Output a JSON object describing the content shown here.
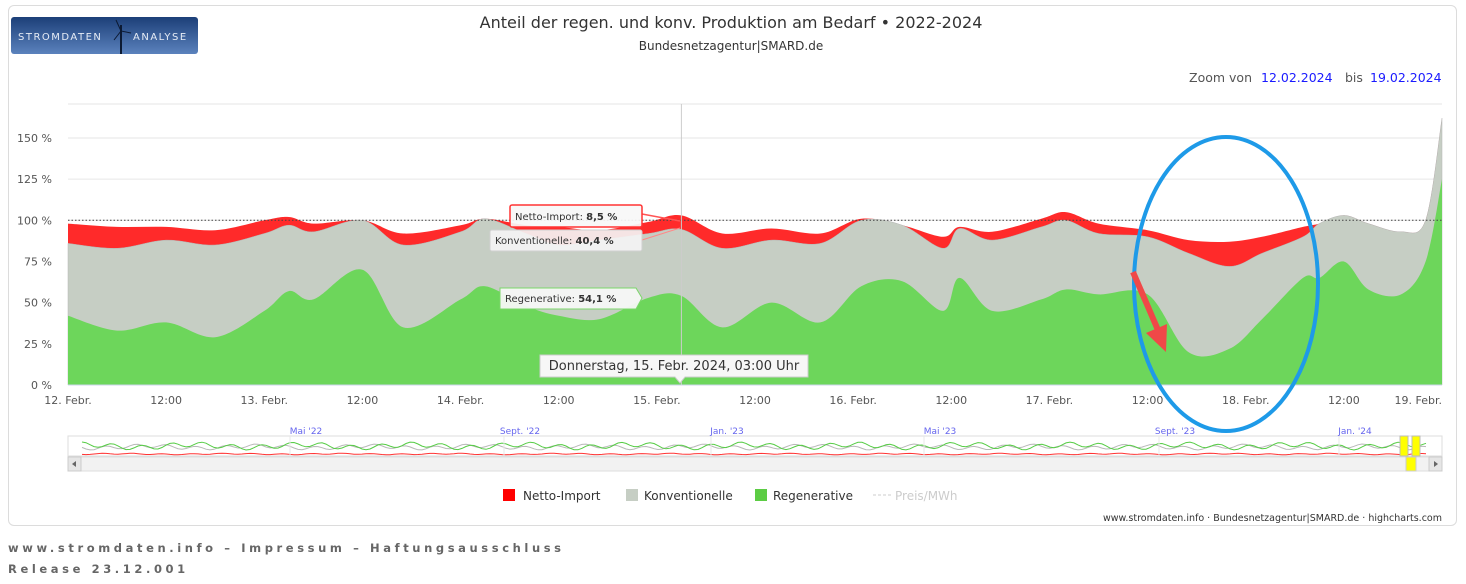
{
  "logo": {
    "text_left": "STROMDATEN",
    "text_right": "ANALYSE"
  },
  "header": {
    "title": "Anteil der regen. und konv. Produktion am Bedarf  •  2022-2024",
    "subtitle": "Bundesnetzagentur|SMARD.de"
  },
  "zoom": {
    "label_from": "Zoom von",
    "from": "12.02.2024",
    "label_to": "bis",
    "to": "19.02.2024"
  },
  "colors": {
    "import": "#ff2a2a",
    "konventionelle": "#c6cec4",
    "regenerative": "#6dd65b",
    "date_link": "#1a1aff"
  },
  "chart_data": {
    "type": "area",
    "stacked": true,
    "x_unit": "hours since 12. Febr. 2024 00:00",
    "x": [
      0,
      6,
      12,
      18,
      24,
      27,
      30,
      36,
      41,
      48,
      51,
      56,
      60,
      65,
      71,
      75,
      80,
      86,
      92,
      97,
      102,
      107,
      109,
      113,
      119,
      122,
      126,
      132,
      137,
      142,
      146,
      151,
      153,
      156,
      159,
      163,
      166,
      168
    ],
    "series": [
      {
        "name": "Regenerative",
        "color": "#6dd65b",
        "values": [
          42,
          33,
          38,
          29,
          45,
          57,
          52,
          70,
          35,
          52,
          60,
          48,
          42,
          40,
          53,
          54.1,
          35,
          50,
          38,
          60,
          63,
          45,
          65,
          45,
          52,
          58,
          55,
          55,
          20,
          22,
          40,
          65,
          65,
          75,
          58,
          55,
          75,
          125
        ]
      },
      {
        "name": "Konventionelle",
        "color": "#c6cec4",
        "values": [
          44,
          50,
          50,
          56,
          47,
          40,
          41,
          30,
          50,
          41,
          41,
          44,
          43,
          48,
          39,
          40.4,
          48,
          38,
          48,
          40,
          34,
          38,
          30,
          43,
          44,
          42,
          37,
          35,
          60,
          50,
          40,
          25,
          33,
          28,
          40,
          38,
          25,
          37
        ]
      },
      {
        "name": "Netto-Import",
        "color": "#ff2a2a",
        "values": [
          12,
          13,
          8,
          9,
          8,
          5,
          5,
          0,
          7,
          4,
          0,
          5,
          11,
          6,
          7,
          8.5,
          9,
          7,
          6,
          1,
          0,
          7,
          1,
          5,
          5,
          5,
          6,
          4,
          8,
          15,
          10,
          6,
          0,
          0,
          0,
          0,
          0,
          0
        ]
      }
    ],
    "ylim": [
      0,
      170
    ],
    "yticks": [
      {
        "v": 0,
        "label": "0 %"
      },
      {
        "v": 25,
        "label": "25 %"
      },
      {
        "v": 50,
        "label": "50 %"
      },
      {
        "v": 75,
        "label": "75 %"
      },
      {
        "v": 100,
        "label": "100 %"
      },
      {
        "v": 125,
        "label": "125 %"
      },
      {
        "v": 150,
        "label": "150 %"
      }
    ],
    "reference_line": 100,
    "xticks": [
      {
        "h": 0,
        "label": "12. Febr."
      },
      {
        "h": 12,
        "label": "12:00"
      },
      {
        "h": 24,
        "label": "13. Febr."
      },
      {
        "h": 36,
        "label": "12:00"
      },
      {
        "h": 48,
        "label": "14. Febr."
      },
      {
        "h": 60,
        "label": "12:00"
      },
      {
        "h": 72,
        "label": "15. Febr."
      },
      {
        "h": 84,
        "label": "12:00"
      },
      {
        "h": 96,
        "label": "16. Febr."
      },
      {
        "h": 108,
        "label": "12:00"
      },
      {
        "h": 120,
        "label": "17. Febr."
      },
      {
        "h": 132,
        "label": "12:00"
      },
      {
        "h": 144,
        "label": "18. Febr."
      },
      {
        "h": 156,
        "label": "12:00"
      },
      {
        "h": 168,
        "label": "19. Febr."
      }
    ],
    "grid": true,
    "tooltip": {
      "x_hours": 75,
      "header": "Donnerstag, 15. Febr. 2024, 03:00 Uhr",
      "import_label": "Netto-Import: ",
      "import_value": "8,5 %",
      "konv_label": "Konventionelle: ",
      "konv_value": "40,4 %",
      "regen_label": "Regenerative: ",
      "regen_value": "54,1 %"
    },
    "legend": {
      "placement": "bottom",
      "items": [
        {
          "label": "Netto-Import",
          "color": "#ff2a2a"
        },
        {
          "label": "Konventionelle",
          "color": "#c6cec4"
        },
        {
          "label": "Regenerative",
          "color": "#6dd65b"
        },
        {
          "label": "Preis/MWh",
          "color": "#cccccc",
          "hidden": true
        }
      ]
    },
    "navigator": {
      "labels": [
        "Mai '22",
        "Sept. '22",
        "Jan. '23",
        "Mai '23",
        "Sept. '23",
        "Jan. '24"
      ]
    }
  },
  "credits": "www.stromdaten.info · Bundesnetzagentur|SMARD.de · highcharts.com",
  "footer": {
    "links": "www.stromdaten.info – Impressum – Haftungsausschluss",
    "release": "Release 23.12.001"
  }
}
